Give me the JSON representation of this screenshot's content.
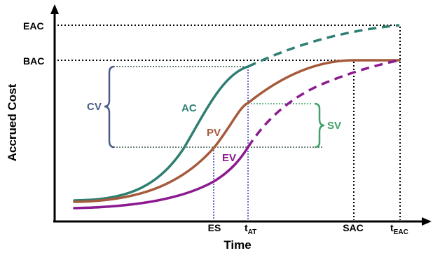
{
  "axes": {
    "x_label": "Time",
    "y_label": "Accrued Cost"
  },
  "y_ticks": {
    "eac": "EAC",
    "bac": "BAC"
  },
  "x_ticks": {
    "es": "ES",
    "t_at": {
      "base": "t",
      "sub": "AT"
    },
    "sac": "SAC",
    "t_eac": {
      "base": "t",
      "sub": "EAC"
    }
  },
  "curves": {
    "ac": {
      "label": "AC",
      "color": "#2e7f72"
    },
    "pv": {
      "label": "PV",
      "color": "#a65a3c"
    },
    "ev": {
      "label": "EV",
      "color": "#8c1a90"
    }
  },
  "variances": {
    "cv": {
      "label": "CV",
      "color": "#4a5c8c"
    },
    "sv": {
      "label": "SV",
      "color": "#3fa068"
    }
  },
  "colors": {
    "axis": "#000000",
    "reference_dotted": "#000000",
    "es_marker": "#3a3ab0",
    "cv_dotted": "#3a5a48",
    "sv_dotted": "#3fa068"
  }
}
